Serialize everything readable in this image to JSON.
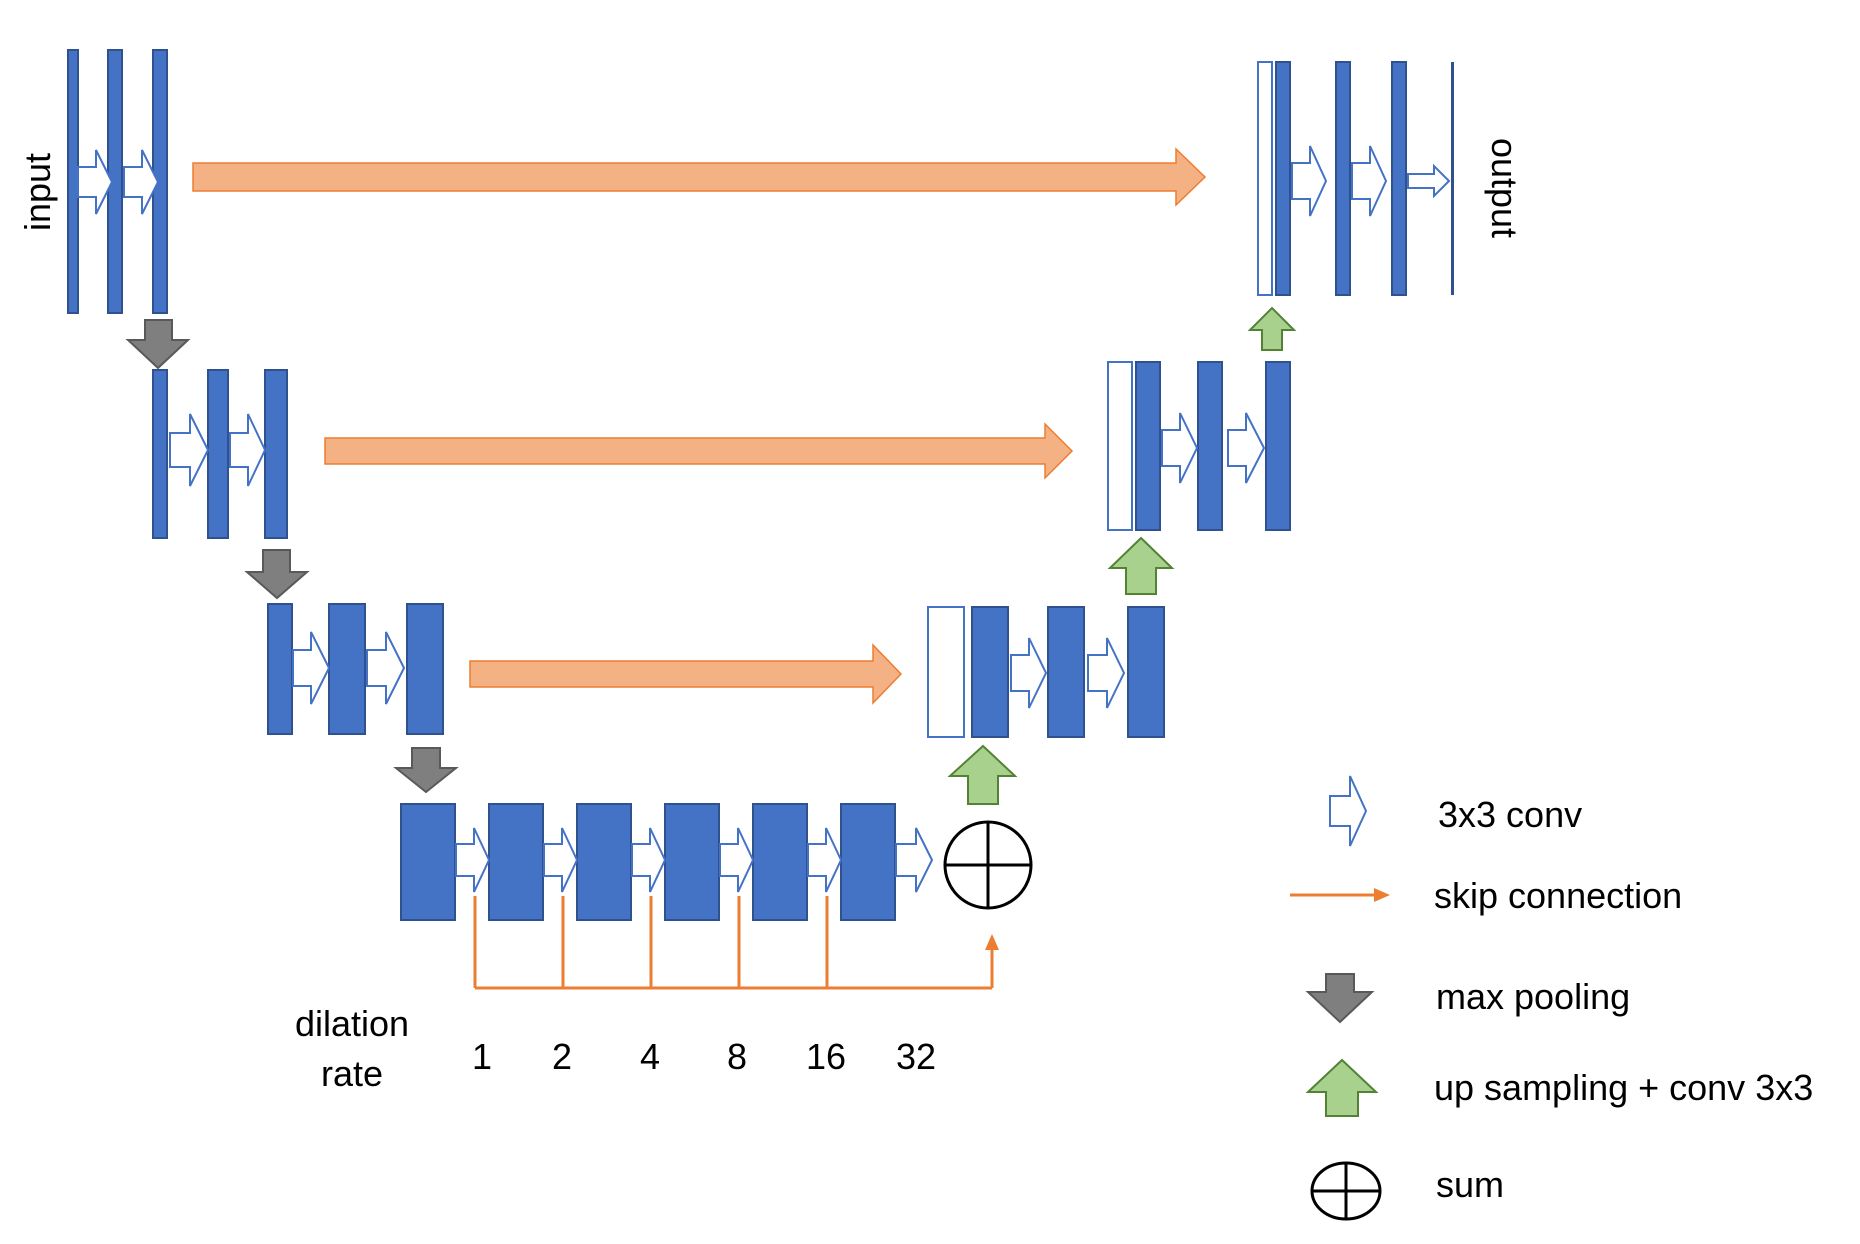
{
  "labels": {
    "input": "input",
    "output": "output",
    "dilation_rate": [
      "dilation",
      "rate"
    ]
  },
  "dilation_rates": [
    "1",
    "2",
    "4",
    "8",
    "16",
    "32"
  ],
  "legend": [
    {
      "symbol": "conv-arrow-icon",
      "label": "3x3 conv"
    },
    {
      "symbol": "skip-connection-line-icon",
      "label": "skip connection"
    },
    {
      "symbol": "max-pool-arrow-icon",
      "label": "max pooling"
    },
    {
      "symbol": "upsample-arrow-icon",
      "label": "up sampling + conv 3x3"
    },
    {
      "symbol": "sum-icon",
      "label": "sum"
    }
  ],
  "colors": {
    "feature_map": "#4472c4",
    "feature_map_border": "#2f528f",
    "skip": "#f4b183",
    "skip_border": "#ed7d31",
    "dilation_line": "#ed7d31",
    "pool": "#7f7f7f",
    "pool_border": "#595959",
    "upsample": "#a9d18e",
    "upsample_border": "#548235"
  }
}
